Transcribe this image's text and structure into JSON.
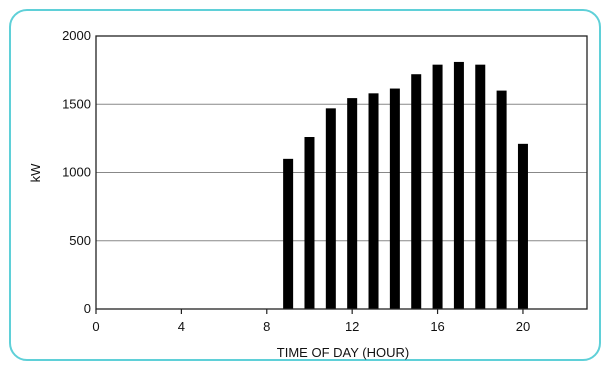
{
  "chart_data": {
    "type": "bar",
    "title": "",
    "xlabel": "TIME OF DAY (HOUR)",
    "ylabel": "kW",
    "xlim": [
      0,
      23
    ],
    "ylim": [
      0,
      2000
    ],
    "grid": true,
    "xticks": [
      "0",
      "4",
      "8",
      "12",
      "16",
      "20"
    ],
    "yticks": [
      "0",
      "500",
      "1000",
      "1500",
      "2000"
    ],
    "x": [
      9,
      10,
      11,
      12,
      13,
      14,
      15,
      16,
      17,
      18,
      19,
      20
    ],
    "values": [
      1100,
      1260,
      1470,
      1545,
      1580,
      1615,
      1720,
      1790,
      1810,
      1790,
      1600,
      1210
    ],
    "bar_color": "#000000",
    "frame_color": "#5fd0d8"
  }
}
